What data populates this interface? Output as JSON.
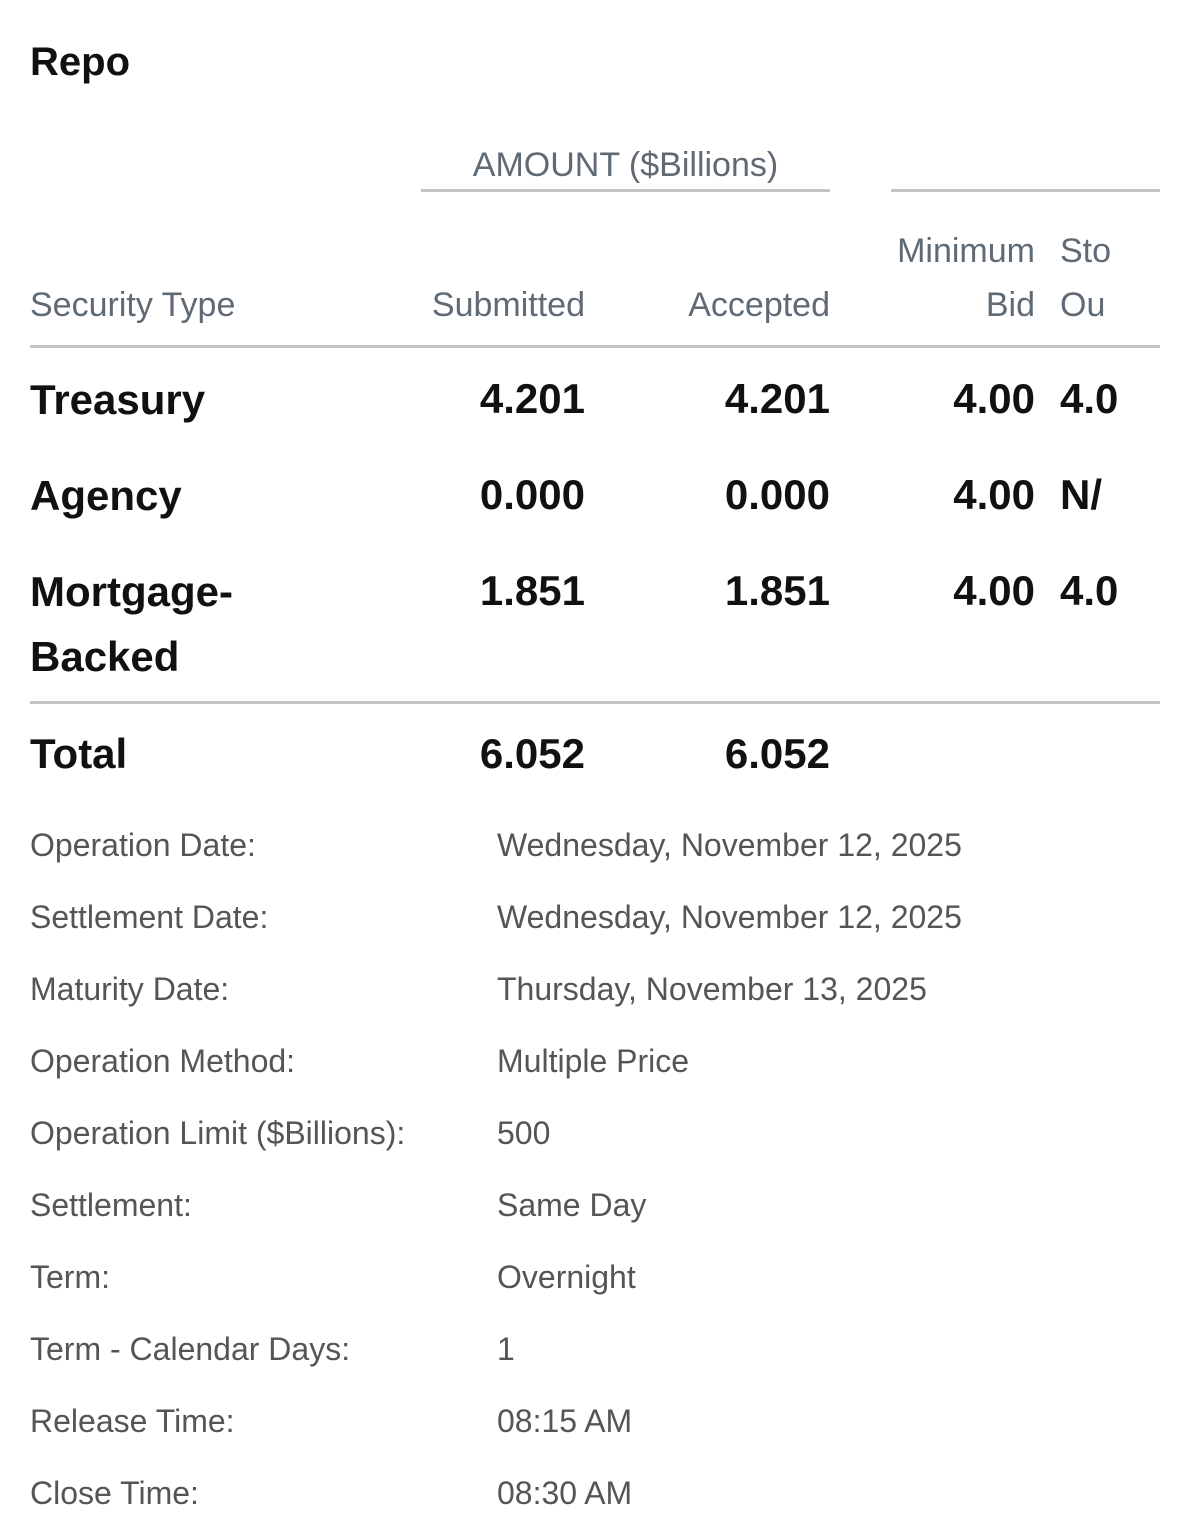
{
  "header": {
    "title": "Repo"
  },
  "table": {
    "group_header": "AMOUNT ($Billions)",
    "columns": [
      [
        "Security Type"
      ],
      [
        "Submitted"
      ],
      [
        "Accepted"
      ],
      [
        "Minimum",
        "Bid"
      ],
      [
        "Sto",
        "Ou"
      ]
    ],
    "rows": [
      [
        "Treasury",
        "4.201",
        "4.201",
        "4.00",
        "4.0"
      ],
      [
        "Agency",
        "0.000",
        "0.000",
        "4.00",
        "N/"
      ],
      [
        "Mortgage-Backed",
        "1.851",
        "1.851",
        "4.00",
        "4.0"
      ]
    ],
    "total": [
      "Total",
      "6.052",
      "6.052"
    ]
  },
  "details": [
    {
      "label": "Operation Date:",
      "value": "Wednesday, November 12, 2025"
    },
    {
      "label": "Settlement Date:",
      "value": "Wednesday, November 12, 2025"
    },
    {
      "label": "Maturity Date:",
      "value": "Thursday, November 13, 2025"
    },
    {
      "label": "Operation Method:",
      "value": "Multiple Price"
    },
    {
      "label": "Operation Limit ($Billions):",
      "value": "500"
    },
    {
      "label": "Settlement:",
      "value": "Same Day"
    },
    {
      "label": "Term:",
      "value": "Overnight"
    },
    {
      "label": "Term - Calendar Days:",
      "value": "1"
    },
    {
      "label": "Release Time:",
      "value": "08:15 AM"
    },
    {
      "label": "Close Time:",
      "value": "08:30 AM"
    }
  ]
}
